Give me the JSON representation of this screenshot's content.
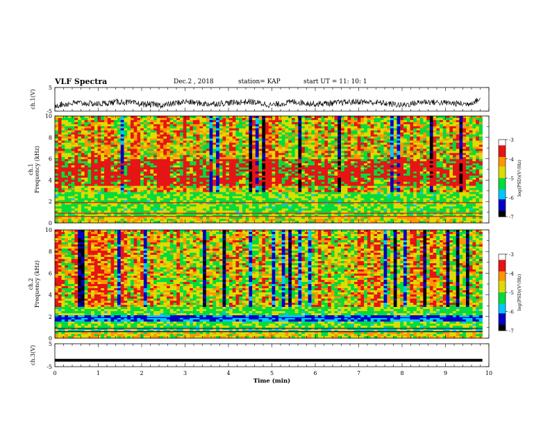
{
  "header": {
    "title": "VLF Spectra",
    "date": "Dec.2 , 2018",
    "station": "station= KAP",
    "start": "start UT =   11: 10: 1"
  },
  "chart_data": [
    {
      "type": "line",
      "panel": "ch1_waveform",
      "ylabel": "ch.1(V)",
      "ylim": [
        -5,
        5
      ],
      "yticks": [
        "5",
        "-5"
      ],
      "x_unit": "min",
      "series": [
        {
          "x": [
            0,
            0.5,
            1,
            1.5,
            2,
            2.5,
            3,
            3.5,
            4,
            4.5,
            5,
            5.5,
            6,
            6.5,
            7,
            7.5,
            8,
            8.5,
            9,
            9.5,
            9.8
          ],
          "values": [
            -2.5,
            -1.5,
            -2,
            -1,
            -2,
            -2.5,
            -1,
            -2,
            -1.5,
            -1,
            -2.5,
            -1,
            -2,
            -1.5,
            -1,
            -1.5,
            -2.5,
            -1,
            -1.5,
            -2,
            0
          ]
        }
      ]
    },
    {
      "type": "heatmap",
      "panel": "ch1_spectrogram",
      "ylabel": "ch.1\nFrequency (kHz)",
      "ylim": [
        0,
        10
      ],
      "yticks": [
        "0",
        "2",
        "4",
        "6",
        "8",
        "10"
      ],
      "colorbar": {
        "label": "log(PSD)(V²/Hz)",
        "range": [
          -7,
          -3
        ],
        "ticks": [
          "-3",
          "-4",
          "-5",
          "-6",
          "-7"
        ]
      },
      "data_xlim": [
        0,
        9.85
      ]
    },
    {
      "type": "heatmap",
      "panel": "ch2_spectrogram",
      "ylabel": "ch.2\nFrequency (kHz)",
      "ylim": [
        0,
        10
      ],
      "yticks": [
        "0",
        "2",
        "4",
        "6",
        "8",
        "10"
      ],
      "colorbar": {
        "label": "log(PSD)(V²/Hz)",
        "range": [
          -7,
          -3
        ],
        "ticks": [
          "-3",
          "-4",
          "-5",
          "-6",
          "-7"
        ]
      },
      "data_xlim": [
        0,
        9.85
      ]
    },
    {
      "type": "line",
      "panel": "ch3_waveform",
      "ylabel": "ch.3(V)",
      "ylim": [
        -5,
        5
      ],
      "yticks": [
        "5",
        "-5"
      ],
      "series": [
        {
          "x": [
            0,
            9.85
          ],
          "values": [
            -2.2,
            -2.2
          ]
        }
      ]
    }
  ],
  "xaxis": {
    "label": "Time (min)",
    "xlim": [
      0,
      10
    ],
    "ticks": [
      "0",
      "1",
      "2",
      "3",
      "4",
      "5",
      "6",
      "7",
      "8",
      "9",
      "10"
    ]
  },
  "colors": {
    "colormap": [
      "#000000",
      "#0000c8",
      "#00c8ff",
      "#00dc3c",
      "#dcdc00",
      "#ff9600",
      "#e61414",
      "#ffffff"
    ]
  }
}
